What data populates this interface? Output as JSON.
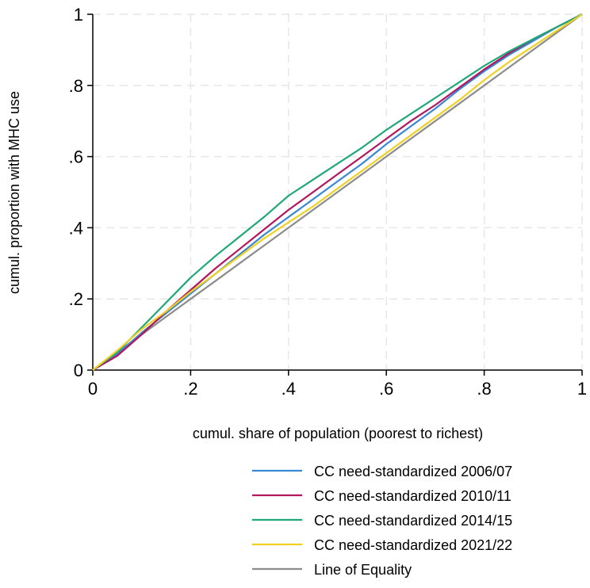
{
  "chart_data": {
    "type": "line",
    "title": "",
    "xlabel": "cumul. share of population (poorest to richest)",
    "ylabel": "cumul. proportion with MHC use",
    "xlim": [
      0,
      1
    ],
    "ylim": [
      0,
      1
    ],
    "grid": true,
    "x_ticks": [
      {
        "value": 0,
        "label": "0"
      },
      {
        "value": 0.2,
        "label": ".2"
      },
      {
        "value": 0.4,
        "label": ".4"
      },
      {
        "value": 0.6,
        "label": ".6"
      },
      {
        "value": 0.8,
        "label": ".8"
      },
      {
        "value": 1,
        "label": "1"
      }
    ],
    "y_ticks": [
      {
        "value": 0,
        "label": "0"
      },
      {
        "value": 0.2,
        "label": ".2"
      },
      {
        "value": 0.4,
        "label": ".4"
      },
      {
        "value": 0.6,
        "label": ".6"
      },
      {
        "value": 0.8,
        "label": ".8"
      },
      {
        "value": 1,
        "label": "1"
      }
    ],
    "legend_position": "bottom-right",
    "x": [
      0,
      0.05,
      0.1,
      0.15,
      0.2,
      0.25,
      0.3,
      0.35,
      0.4,
      0.45,
      0.5,
      0.55,
      0.6,
      0.65,
      0.7,
      0.75,
      0.8,
      0.85,
      0.9,
      0.95,
      1.0
    ],
    "series": [
      {
        "name": "CC need-standardized 2006/07",
        "color": "#3a87d3",
        "values": [
          0,
          0.045,
          0.105,
          0.16,
          0.215,
          0.27,
          0.325,
          0.38,
          0.43,
          0.48,
          0.53,
          0.58,
          0.635,
          0.685,
          0.735,
          0.79,
          0.84,
          0.885,
          0.925,
          0.965,
          1.0
        ]
      },
      {
        "name": "CC need-standardized 2010/11",
        "color": "#b2165e",
        "values": [
          0,
          0.04,
          0.1,
          0.165,
          0.225,
          0.285,
          0.34,
          0.395,
          0.45,
          0.5,
          0.55,
          0.6,
          0.65,
          0.7,
          0.745,
          0.795,
          0.845,
          0.89,
          0.93,
          0.965,
          1.0
        ]
      },
      {
        "name": "CC need-standardized 2014/15",
        "color": "#20a77a",
        "values": [
          0,
          0.05,
          0.12,
          0.19,
          0.26,
          0.32,
          0.375,
          0.43,
          0.49,
          0.535,
          0.58,
          0.625,
          0.675,
          0.72,
          0.765,
          0.81,
          0.855,
          0.895,
          0.93,
          0.965,
          1.0
        ]
      },
      {
        "name": "CC need-standardized 2021/22",
        "color": "#f0d020",
        "values": [
          0,
          0.055,
          0.115,
          0.165,
          0.22,
          0.27,
          0.32,
          0.37,
          0.415,
          0.46,
          0.51,
          0.56,
          0.61,
          0.66,
          0.71,
          0.76,
          0.815,
          0.865,
          0.91,
          0.955,
          1.0
        ]
      },
      {
        "name": "Line of Equality",
        "color": "#8c8c8c",
        "values": [
          0,
          0.05,
          0.1,
          0.15,
          0.2,
          0.25,
          0.3,
          0.35,
          0.4,
          0.45,
          0.5,
          0.55,
          0.6,
          0.65,
          0.7,
          0.75,
          0.8,
          0.85,
          0.9,
          0.95,
          1.0
        ]
      }
    ]
  }
}
